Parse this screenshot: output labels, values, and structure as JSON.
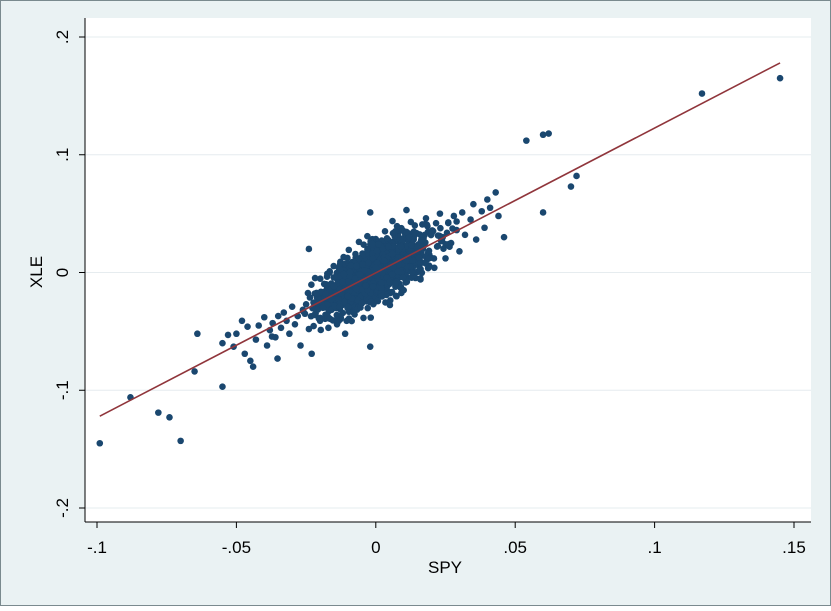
{
  "chart_data": {
    "type": "scatter",
    "xlabel": "SPY",
    "ylabel": "XLE",
    "xlim": [
      -0.1,
      0.15
    ],
    "ylim": [
      -0.2,
      0.2
    ],
    "x_ticks": [
      -0.1,
      -0.05,
      0,
      0.05,
      0.1,
      0.15
    ],
    "x_tick_labels": [
      "-.1",
      "-.05",
      "0",
      ".05",
      ".1",
      ".15"
    ],
    "y_ticks": [
      -0.2,
      -0.1,
      0,
      0.1,
      0.2
    ],
    "y_tick_labels": [
      "-.2",
      "-.1",
      "0",
      ".1",
      ".2"
    ],
    "grid": true,
    "colors": {
      "outer_background": "#eaf2f3",
      "plot_background": "#ffffff",
      "grid": "#e6ecef",
      "points": "#1a476f",
      "fit_line": "#90353b",
      "axis": "#000000"
    },
    "series": [
      {
        "type": "scatter",
        "points": [
          [
            -0.099,
            -0.145
          ],
          [
            -0.088,
            -0.106
          ],
          [
            -0.078,
            -0.119
          ],
          [
            -0.074,
            -0.123
          ],
          [
            -0.07,
            -0.143
          ],
          [
            -0.065,
            -0.084
          ],
          [
            -0.064,
            -0.052
          ],
          [
            -0.055,
            -0.097
          ],
          [
            -0.055,
            -0.06
          ],
          [
            -0.053,
            -0.053
          ],
          [
            -0.051,
            -0.063
          ],
          [
            -0.05,
            -0.052
          ],
          [
            -0.048,
            -0.041
          ],
          [
            -0.047,
            -0.069
          ],
          [
            -0.046,
            -0.046
          ],
          [
            -0.045,
            -0.075
          ],
          [
            -0.044,
            -0.08
          ],
          [
            -0.043,
            -0.057
          ],
          [
            -0.042,
            -0.045
          ],
          [
            -0.04,
            -0.038
          ],
          [
            -0.039,
            -0.062
          ],
          [
            -0.038,
            -0.049
          ],
          [
            -0.037,
            -0.043
          ],
          [
            -0.036,
            -0.055
          ],
          [
            -0.035,
            -0.037
          ],
          [
            -0.034,
            -0.047
          ],
          [
            -0.033,
            -0.034
          ],
          [
            -0.032,
            -0.041
          ],
          [
            -0.031,
            -0.052
          ],
          [
            -0.03,
            -0.029
          ],
          [
            -0.029,
            -0.044
          ],
          [
            -0.028,
            -0.037
          ],
          [
            -0.027,
            -0.062
          ],
          [
            -0.026,
            -0.033
          ],
          [
            -0.025,
            -0.027
          ],
          [
            -0.024,
            -0.048
          ],
          [
            -0.023,
            -0.069
          ],
          [
            -0.022,
            -0.036
          ],
          [
            -0.021,
            -0.026
          ],
          [
            -0.02,
            -0.041
          ],
          [
            -0.024,
            0.02
          ],
          [
            -0.019,
            -0.03
          ],
          [
            -0.018,
            -0.018
          ],
          [
            -0.017,
            -0.047
          ],
          [
            -0.016,
            -0.023
          ],
          [
            -0.015,
            -0.012
          ],
          [
            -0.014,
            -0.04
          ],
          [
            -0.013,
            -0.029
          ],
          [
            -0.012,
            -0.008
          ],
          [
            -0.011,
            -0.052
          ],
          [
            -0.01,
            -0.02
          ],
          [
            -0.009,
            0.006
          ],
          [
            -0.008,
            -0.034
          ],
          [
            -0.007,
            -0.014
          ],
          [
            -0.006,
            0.012
          ],
          [
            -0.005,
            -0.026
          ],
          [
            -0.004,
            -0.006
          ],
          [
            -0.003,
            0.02
          ],
          [
            -0.002,
            -0.063
          ],
          [
            -0.001,
            -0.012
          ],
          [
            0.0,
            0.004
          ],
          [
            0.001,
            0.024
          ],
          [
            0.002,
            -0.02
          ],
          [
            0.003,
            0.01
          ],
          [
            0.004,
            0.029
          ],
          [
            0.005,
            -0.008
          ],
          [
            0.006,
            0.016
          ],
          [
            0.007,
            0.035
          ],
          [
            0.008,
            0.001
          ],
          [
            0.009,
            0.022
          ],
          [
            0.01,
            -0.015
          ],
          [
            0.011,
            0.01
          ],
          [
            0.012,
            0.03
          ],
          [
            0.013,
            0.0
          ],
          [
            0.014,
            0.04
          ],
          [
            0.015,
            0.018
          ],
          [
            0.016,
            -0.005
          ],
          [
            0.017,
            0.027
          ],
          [
            0.018,
            0.046
          ],
          [
            0.019,
            0.012
          ],
          [
            0.02,
            0.033
          ],
          [
            0.021,
            0.004
          ],
          [
            0.022,
            0.022
          ],
          [
            0.023,
            0.05
          ],
          [
            0.024,
            0.03
          ],
          [
            0.025,
            0.012
          ],
          [
            0.026,
            0.042
          ],
          [
            0.027,
            0.025
          ],
          [
            0.028,
            0.048
          ],
          [
            0.029,
            0.036
          ],
          [
            0.03,
            0.018
          ],
          [
            0.031,
            0.051
          ],
          [
            0.032,
            0.032
          ],
          [
            0.034,
            0.045
          ],
          [
            0.035,
            0.058
          ],
          [
            0.036,
            0.028
          ],
          [
            0.038,
            0.052
          ],
          [
            0.039,
            0.038
          ],
          [
            0.04,
            0.062
          ],
          [
            0.041,
            0.055
          ],
          [
            0.043,
            0.068
          ],
          [
            0.044,
            0.048
          ],
          [
            0.046,
            0.03
          ],
          [
            -0.002,
            0.051
          ],
          [
            0.011,
            0.053
          ],
          [
            0.054,
            0.112
          ],
          [
            0.06,
            0.117
          ],
          [
            0.062,
            0.118
          ],
          [
            0.06,
            0.051
          ],
          [
            0.07,
            0.073
          ],
          [
            0.072,
            0.082
          ],
          [
            0.117,
            0.152
          ],
          [
            0.145,
            0.165
          ]
        ],
        "cluster": {
          "x_mean": 0.0,
          "x_sd": 0.009,
          "slope": 1.2,
          "residual_sd": 0.011,
          "count": 1600
        }
      },
      {
        "type": "line",
        "x": [
          -0.099,
          0.145
        ],
        "y": [
          -0.122,
          0.178
        ]
      }
    ]
  }
}
